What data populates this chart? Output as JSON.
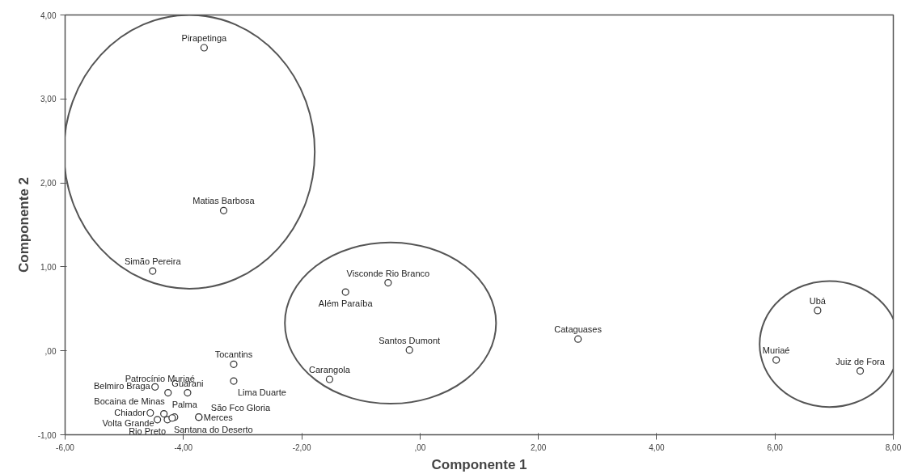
{
  "chart_data": {
    "type": "scatter",
    "xlabel": "Componente 1",
    "ylabel": "Componente 2",
    "marker": "circle",
    "grid": false,
    "xlim": [
      -6,
      8
    ],
    "ylim": [
      -1,
      4
    ],
    "xticks": [
      {
        "value": -6,
        "label": "-6,00"
      },
      {
        "value": -4,
        "label": "-4,00"
      },
      {
        "value": -2,
        "label": "-2,00"
      },
      {
        "value": 0,
        "label": ",00"
      },
      {
        "value": 2,
        "label": "2,00"
      },
      {
        "value": 4,
        "label": "4,00"
      },
      {
        "value": 6,
        "label": "6,00"
      },
      {
        "value": 8,
        "label": "8,00"
      }
    ],
    "yticks": [
      {
        "value": -1,
        "label": "-1,00"
      },
      {
        "value": 0,
        "label": ",00"
      },
      {
        "value": 1,
        "label": "1,00"
      },
      {
        "value": 2,
        "label": "2,00"
      },
      {
        "value": 3,
        "label": "3,00"
      },
      {
        "value": 4,
        "label": "4,00"
      }
    ],
    "series": [
      {
        "color": "#333333",
        "x": [
          -3.65,
          -3.32,
          -4.52,
          -0.54,
          -1.26,
          -0.18,
          -1.53,
          2.67,
          6.72,
          6.02,
          7.44,
          -3.15,
          -3.15,
          -4.48,
          -4.26,
          -3.93,
          -4.56,
          -4.33,
          -4.15,
          -4.44,
          -4.27,
          -4.19,
          -3.74,
          -3.74
        ],
        "values": [
          3.61,
          1.67,
          0.95,
          0.81,
          0.7,
          0.01,
          -0.34,
          0.14,
          0.48,
          -0.11,
          -0.24,
          -0.16,
          -0.36,
          -0.43,
          -0.5,
          -0.5,
          -0.74,
          -0.75,
          -0.79,
          -0.82,
          -0.82,
          -0.8,
          -0.79,
          -0.79
        ],
        "value_labels": [
          "Pirapetinga",
          "Matias Barbosa",
          "Simão Pereira",
          "Visconde Rio Branco",
          "Além Paraíba",
          "Santos Dumont",
          "Carangola",
          "Cataguases",
          "Ubá",
          "Muriaé",
          "Juiz de Fora",
          "Tocantins",
          "Lima Duarte",
          "Belmiro Braga",
          "Patrocínio Muriaé",
          "Guarani",
          "Chiador",
          "Palma",
          "Bocaina de Minas",
          "Volta Grande",
          "Rio Preto",
          "Santana do Deserto",
          "São Fco Gloria",
          "Merces"
        ]
      }
    ]
  }
}
